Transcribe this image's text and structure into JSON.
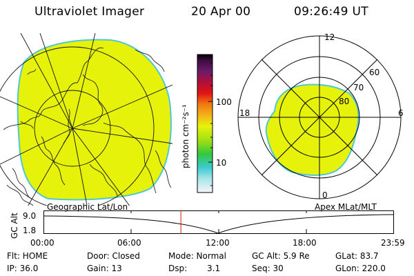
{
  "header": {
    "instrument": "Ultraviolet Imager",
    "date": "20 Apr 00",
    "time": "09:26:49 UT"
  },
  "colorbar": {
    "unit_label": "photon cm⁻²s⁻¹",
    "ticks": [
      "100",
      "10"
    ]
  },
  "polar": {
    "mlt_labels": [
      "12",
      "18",
      "6",
      "0"
    ],
    "lat_labels": [
      "60",
      "70",
      "80"
    ]
  },
  "panels": {
    "left_caption": "Geographic Lat/Lon",
    "right_caption": "Apex MLat/MLT"
  },
  "orbit_plot": {
    "ylabel": "GC Alt",
    "yticks": [
      "9.0",
      "1.8"
    ],
    "xticks": [
      "00:00",
      "06:00",
      "12:00",
      "18:00",
      "23:59"
    ],
    "marker_time_fraction": 0.392
  },
  "info": {
    "flt": "Flt: HOME",
    "ip": "IP: 36.0",
    "door": "Door: Closed",
    "gain": "Gain: 13",
    "mode": "Mode: Normal",
    "dsp_label": "Dsp:",
    "dsp_value": "3.1",
    "gc_alt": "GC Alt: 5.9 Re",
    "seq": "Seq: 30",
    "glat": "GLat: 83.7",
    "glon": "GLon: 220.0"
  },
  "colors": {
    "aurora": "#e6f20a",
    "aurora_edge": "#4ec7d6",
    "marker": "#d81818"
  }
}
